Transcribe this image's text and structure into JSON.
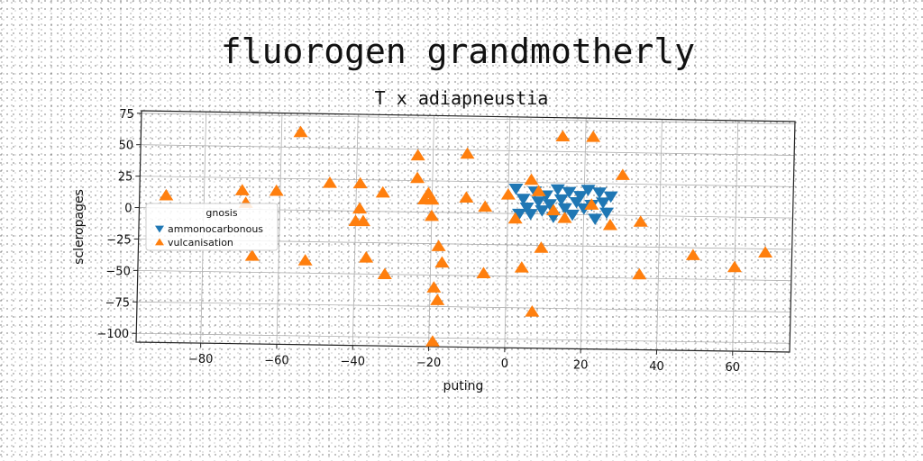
{
  "chart_data": {
    "type": "scatter",
    "title": "fluorogen grandmotherly",
    "subtitle": "T x adiapneustia",
    "xlabel": "puting",
    "ylabel": "scleropages",
    "xlim": [
      -97,
      75
    ],
    "ylim": [
      -107,
      77
    ],
    "xticks": [
      -80,
      -60,
      -40,
      -20,
      0,
      20,
      40,
      60
    ],
    "yticks": [
      75,
      50,
      25,
      0,
      -25,
      -50,
      -75,
      -100
    ],
    "grid": true,
    "legend": {
      "title": "gnosis",
      "placement": "center-left"
    },
    "series": [
      {
        "name": "ammonocarbonous",
        "color": "#1f77b4",
        "marker": "triangle-down",
        "points": [
          [
            2,
            20
          ],
          [
            4,
            12
          ],
          [
            5,
            5
          ],
          [
            6,
            0
          ],
          [
            7,
            18
          ],
          [
            8,
            10
          ],
          [
            9,
            3
          ],
          [
            10,
            15
          ],
          [
            11,
            8
          ],
          [
            12,
            -2
          ],
          [
            13,
            20
          ],
          [
            14,
            12
          ],
          [
            15,
            5
          ],
          [
            16,
            18
          ],
          [
            17,
            0
          ],
          [
            18,
            10
          ],
          [
            19,
            15
          ],
          [
            20,
            5
          ],
          [
            21,
            20
          ],
          [
            22,
            8
          ],
          [
            23,
            -3
          ],
          [
            24,
            18
          ],
          [
            25,
            10
          ],
          [
            26,
            2
          ],
          [
            27,
            15
          ],
          [
            3,
            0
          ]
        ]
      },
      {
        "name": "vulcanisation",
        "color": "#ff7f0e",
        "marker": "triangle-up",
        "points": [
          [
            -90,
            10
          ],
          [
            -70,
            15
          ],
          [
            -69,
            5
          ],
          [
            -67,
            -37
          ],
          [
            -61,
            15
          ],
          [
            -55,
            62
          ],
          [
            -53,
            -40
          ],
          [
            -47,
            22
          ],
          [
            -40,
            -8
          ],
          [
            -39,
            2
          ],
          [
            -39,
            22
          ],
          [
            -38,
            -8
          ],
          [
            -37,
            -37
          ],
          [
            -33,
            15
          ],
          [
            -32,
            -50
          ],
          [
            -24,
            45
          ],
          [
            -24,
            27
          ],
          [
            -22,
            10
          ],
          [
            -21,
            15
          ],
          [
            -20,
            -3
          ],
          [
            -20,
            10
          ],
          [
            -19,
            -60
          ],
          [
            -19,
            -103
          ],
          [
            -18,
            -70
          ],
          [
            -18,
            -27
          ],
          [
            -17,
            -40
          ],
          [
            -11,
            47
          ],
          [
            -11,
            12
          ],
          [
            -6,
            5
          ],
          [
            -6,
            -48
          ],
          [
            0,
            15
          ],
          [
            2,
            -4
          ],
          [
            4,
            -43
          ],
          [
            6,
            27
          ],
          [
            7,
            -78
          ],
          [
            9,
            -27
          ],
          [
            12,
            3
          ],
          [
            14,
            62
          ],
          [
            15,
            -3
          ],
          [
            22,
            62
          ],
          [
            22,
            8
          ],
          [
            27,
            -8
          ],
          [
            30,
            32
          ],
          [
            35,
            -5
          ],
          [
            35,
            -47
          ],
          [
            49,
            -31
          ],
          [
            60,
            -40
          ],
          [
            68,
            -28
          ],
          [
            8,
            18
          ]
        ]
      }
    ]
  }
}
